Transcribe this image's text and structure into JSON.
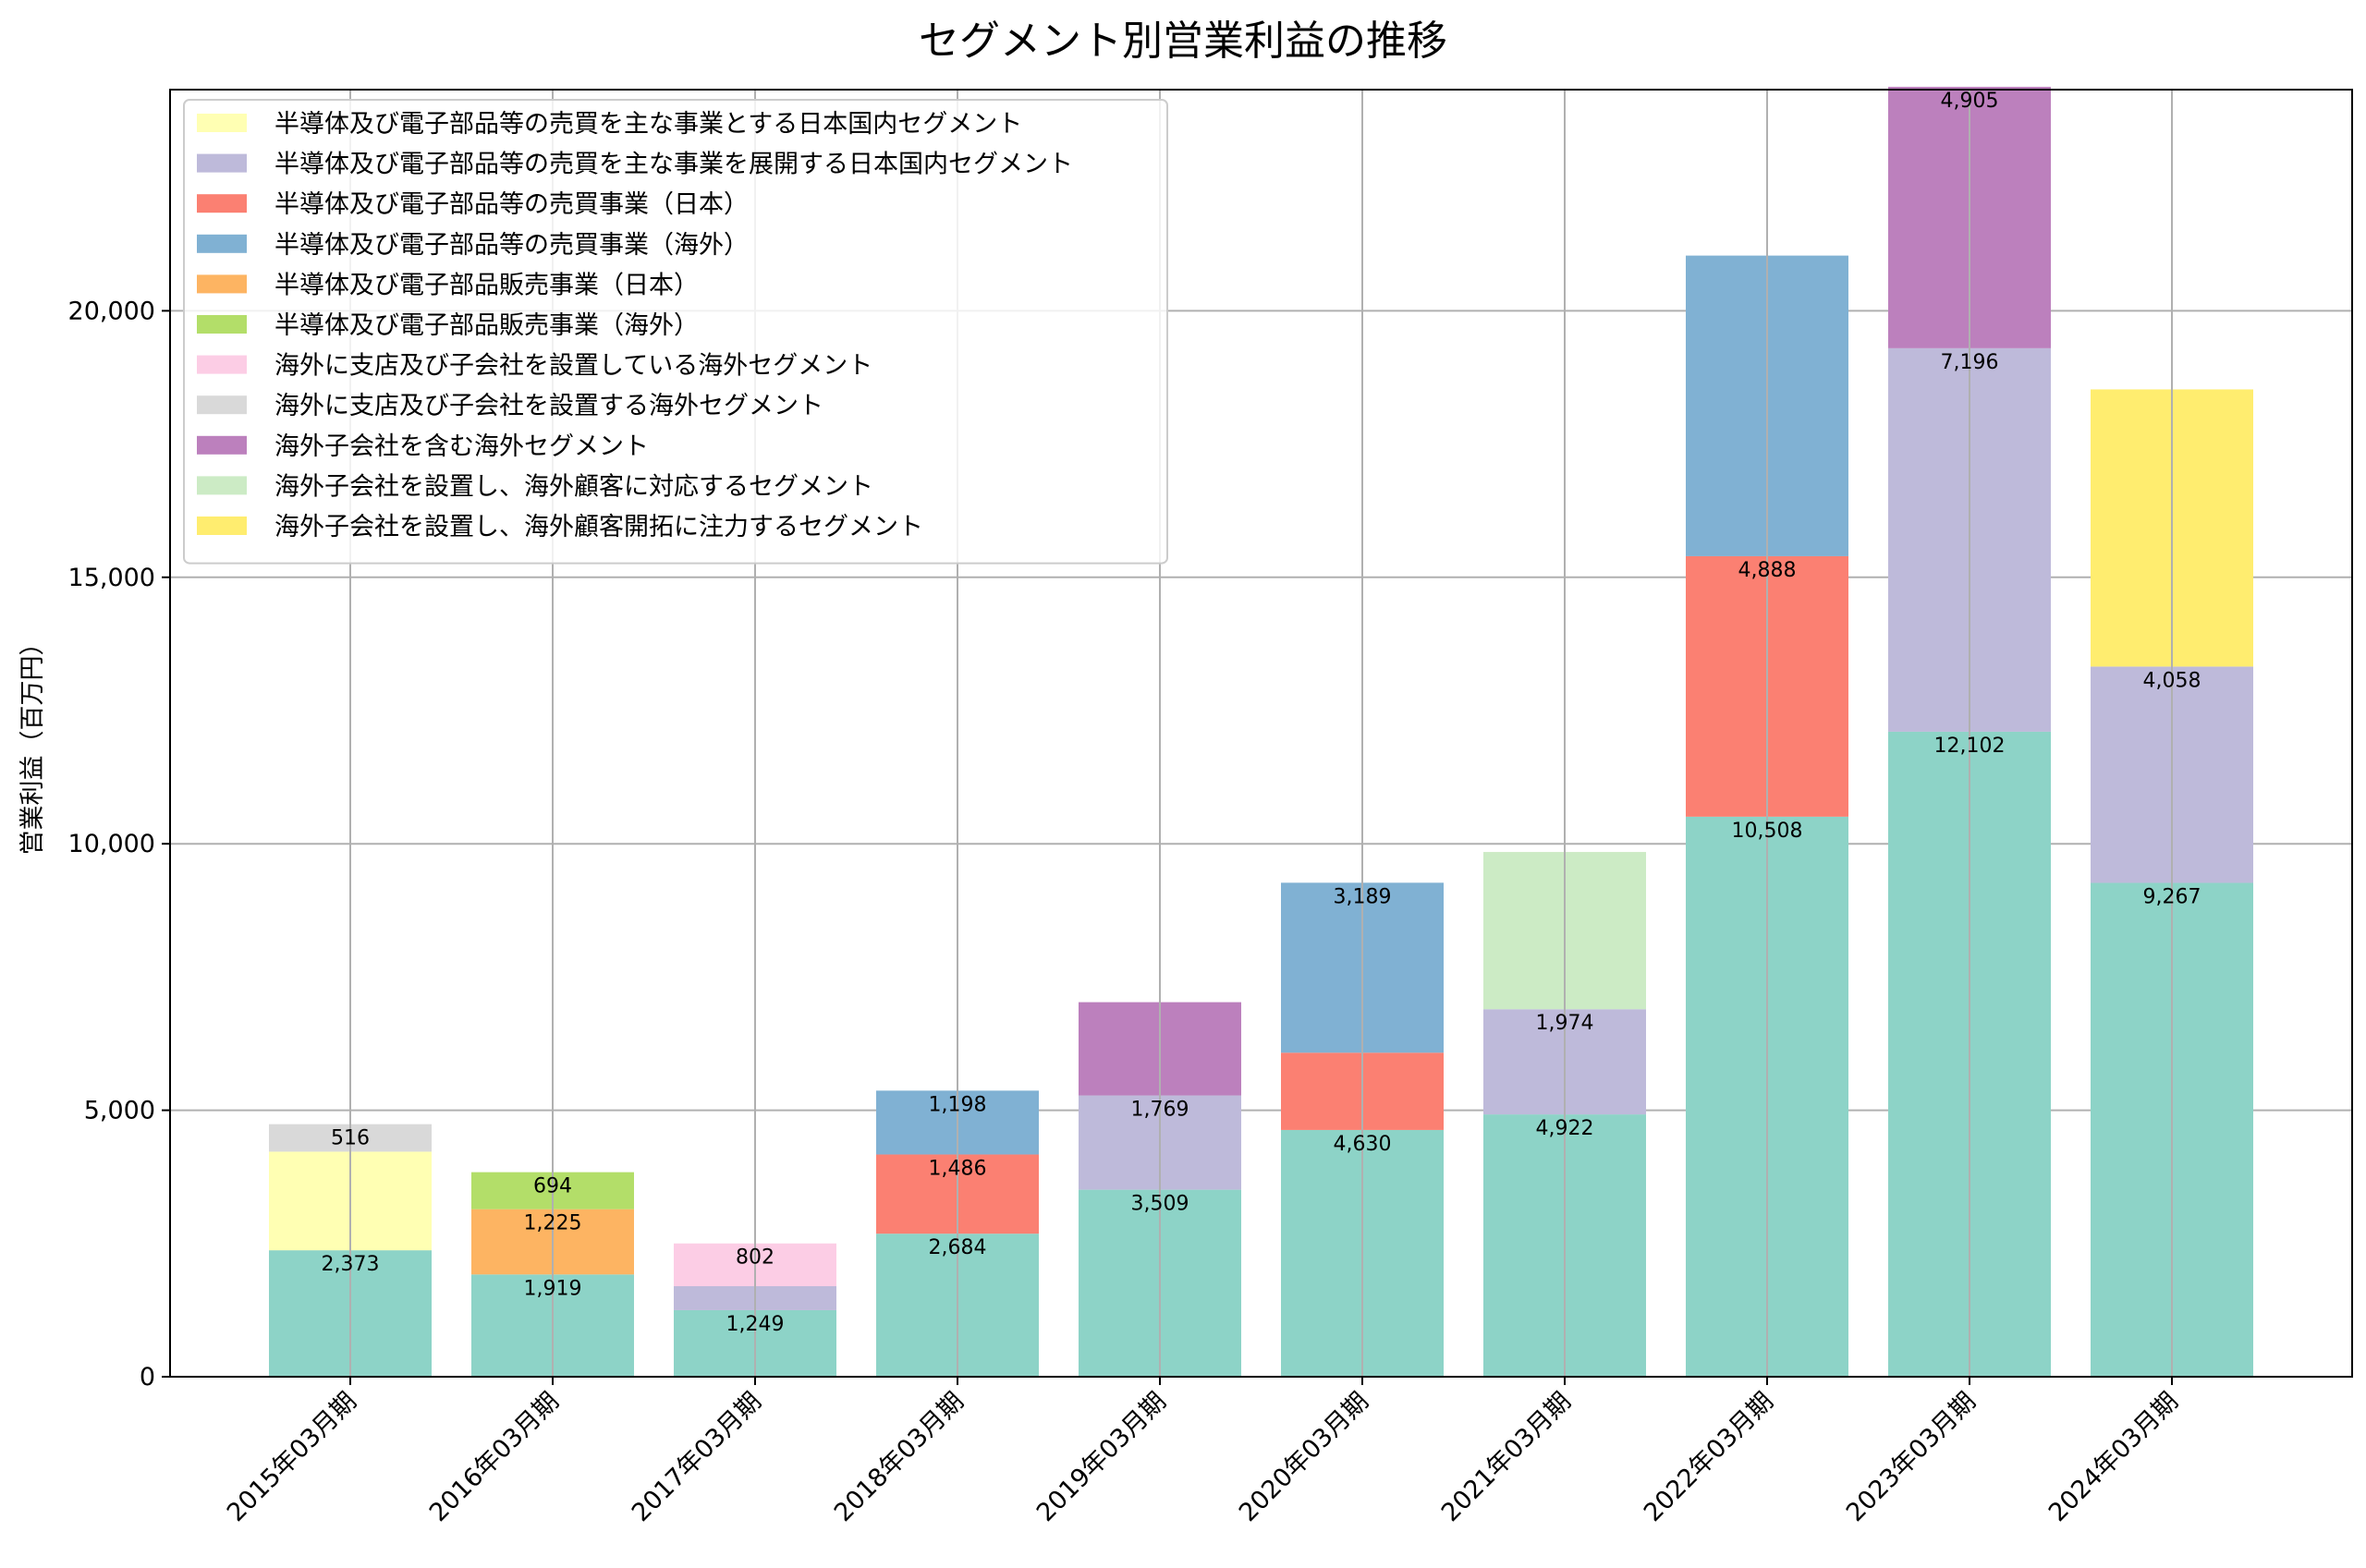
{
  "chart_data": {
    "type": "bar",
    "stacked": true,
    "title": "セグメント別営業利益の推移",
    "xlabel": "",
    "ylabel": "営業利益（百万円）",
    "ylim": [
      0,
      24150
    ],
    "yticks": [
      0,
      5000,
      10000,
      15000,
      20000
    ],
    "ytick_labels": [
      "0",
      "5,000",
      "10,000",
      "15,000",
      "20,000"
    ],
    "grid": true,
    "legend_position": "upper-left",
    "categories": [
      "2015年03月期",
      "2016年03月期",
      "2017年03月期",
      "2018年03月期",
      "2019年03月期",
      "2020年03月期",
      "2021年03月期",
      "2022年03月期",
      "2023年03月期",
      "2024年03月期"
    ],
    "base_series": {
      "color": "#8dd3c7",
      "values": [
        2373,
        1919,
        1249,
        2684,
        3509,
        4630,
        4922,
        10508,
        12102,
        9267
      ],
      "labels": [
        "2,373",
        "1,919",
        "1,249",
        "2,684",
        "3,509",
        "4,630",
        "4,922",
        "10,508",
        "12,102",
        "9,267"
      ]
    },
    "series": [
      {
        "name": "半導体及び電子部品等の売買を主な事業とする日本国内セグメント",
        "color": "#ffffb3",
        "values": [
          1850,
          null,
          null,
          null,
          null,
          null,
          null,
          null,
          null,
          null
        ],
        "labels": [
          null,
          null,
          null,
          null,
          null,
          null,
          null,
          null,
          null,
          null
        ]
      },
      {
        "name": "半導体及び電子部品等の売買を主な事業を展開する日本国内セグメント",
        "color": "#bebada",
        "values": [
          null,
          null,
          450,
          null,
          1769,
          null,
          1974,
          null,
          7196,
          4058
        ],
        "labels": [
          null,
          null,
          null,
          null,
          "1,769",
          null,
          "1,974",
          null,
          "7,196",
          "4,058"
        ]
      },
      {
        "name": "半導体及び電子部品等の売買事業（日本）",
        "color": "#fb8072",
        "values": [
          null,
          null,
          null,
          1486,
          null,
          1450,
          null,
          4888,
          null,
          null
        ],
        "labels": [
          null,
          null,
          null,
          "1,486",
          null,
          null,
          null,
          "4,888",
          null,
          null
        ]
      },
      {
        "name": "半導体及び電子部品等の売買事業（海外）",
        "color": "#80b1d3",
        "values": [
          null,
          null,
          null,
          1198,
          null,
          3189,
          null,
          5640,
          null,
          null
        ],
        "labels": [
          null,
          null,
          null,
          "1,198",
          null,
          "3,189",
          null,
          null,
          null,
          null
        ]
      },
      {
        "name": "半導体及び電子部品販売事業（日本）",
        "color": "#fdb462",
        "values": [
          null,
          1225,
          null,
          null,
          null,
          null,
          null,
          null,
          null,
          null
        ],
        "labels": [
          null,
          "1,225",
          null,
          null,
          null,
          null,
          null,
          null,
          null,
          null
        ]
      },
      {
        "name": "半導体及び電子部品販売事業（海外）",
        "color": "#b3de69",
        "values": [
          null,
          694,
          null,
          null,
          null,
          null,
          null,
          null,
          null,
          null
        ],
        "labels": [
          null,
          "694",
          null,
          null,
          null,
          null,
          null,
          null,
          null,
          null
        ]
      },
      {
        "name": "海外に支店及び子会社を設置している海外セグメント",
        "color": "#fccde5",
        "values": [
          null,
          null,
          802,
          null,
          null,
          null,
          null,
          null,
          null,
          null
        ],
        "labels": [
          null,
          null,
          "802",
          null,
          null,
          null,
          null,
          null,
          null,
          null
        ]
      },
      {
        "name": "海外に支店及び子会社を設置する海外セグメント",
        "color": "#d9d9d9",
        "values": [
          516,
          null,
          null,
          null,
          null,
          null,
          null,
          null,
          null,
          null
        ],
        "labels": [
          "516",
          null,
          null,
          null,
          null,
          null,
          null,
          null,
          null,
          null
        ]
      },
      {
        "name": "海外子会社を含む海外セグメント",
        "color": "#bc80bd",
        "values": [
          null,
          null,
          null,
          null,
          1750,
          null,
          null,
          null,
          4905,
          null
        ],
        "labels": [
          null,
          null,
          null,
          null,
          null,
          null,
          null,
          null,
          "4,905",
          null
        ]
      },
      {
        "name": "海外子会社を設置し、海外顧客に対応するセグメント",
        "color": "#ccebc5",
        "values": [
          null,
          null,
          null,
          null,
          null,
          null,
          2950,
          null,
          null,
          null
        ],
        "labels": [
          null,
          null,
          null,
          null,
          null,
          null,
          null,
          null,
          null,
          null
        ]
      },
      {
        "name": "海外子会社を設置し、海外顧客開拓に注力するセグメント",
        "color": "#ffed6f",
        "values": [
          null,
          null,
          null,
          null,
          null,
          null,
          null,
          null,
          null,
          5200
        ],
        "labels": [
          null,
          null,
          null,
          null,
          null,
          null,
          null,
          null,
          null,
          null
        ]
      }
    ]
  }
}
